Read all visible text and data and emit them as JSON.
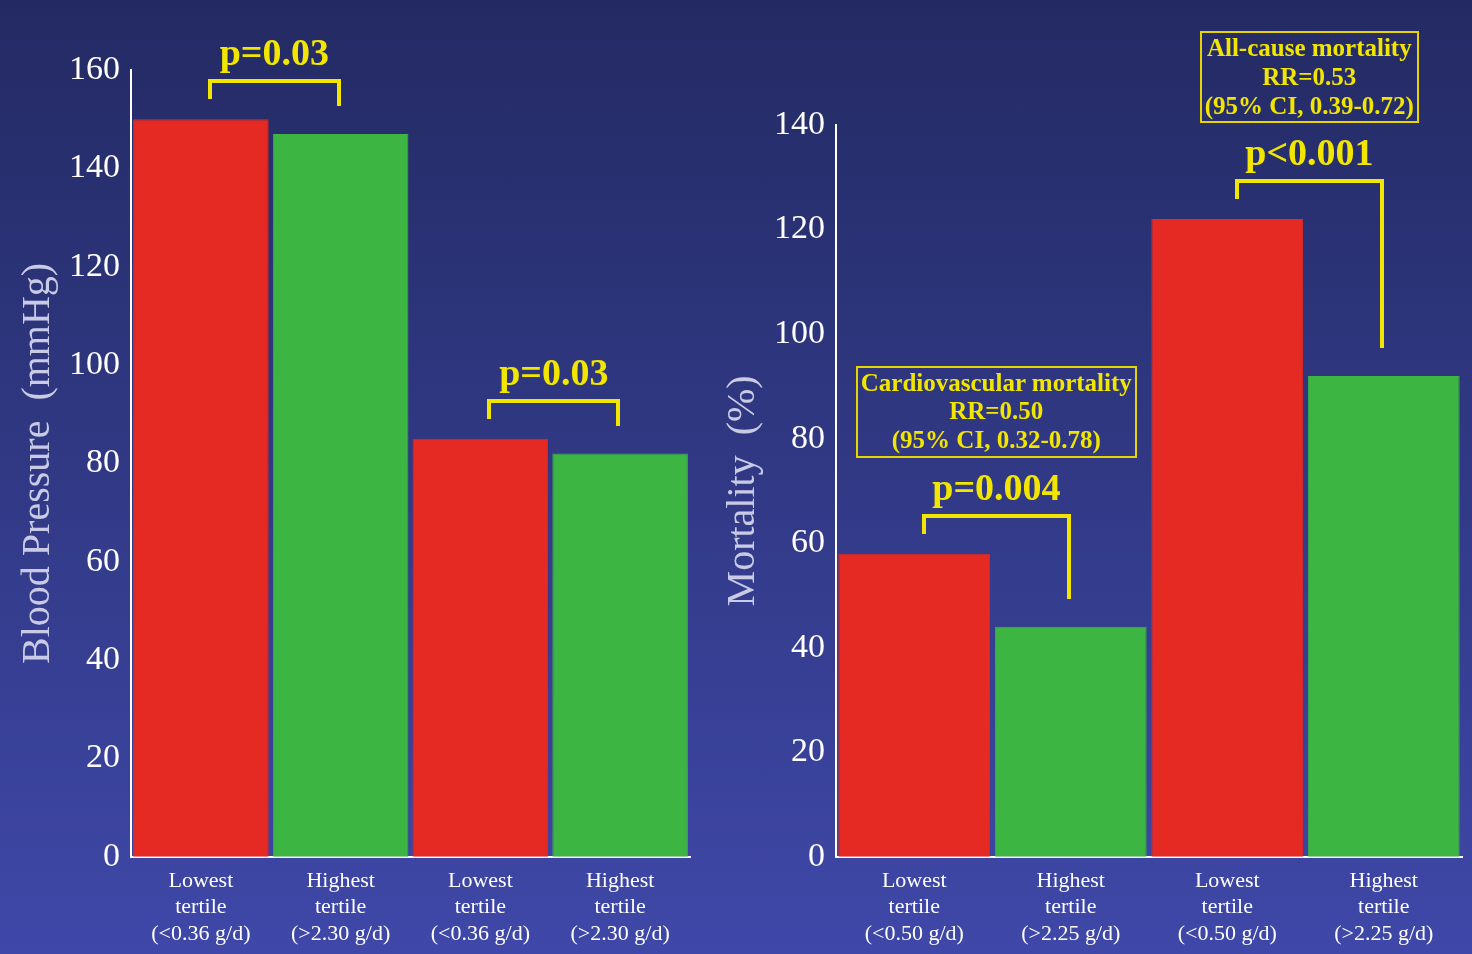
{
  "chart_data": [
    {
      "type": "bar",
      "ylabel": "Blood Pressure  (mmHg)",
      "categories": [
        "Lowest\ntertile\n(<0.36 g/d)",
        "Highest\ntertile\n(>2.30 g/d)",
        "Lowest\ntertile\n(<0.36 g/d)",
        "Highest\ntertile\n(>2.30 g/d)"
      ],
      "values": [
        150,
        147,
        85,
        82
      ],
      "colors": [
        "#e42a22",
        "#3db542",
        "#e42a22",
        "#3db542"
      ],
      "ylim": [
        0,
        160
      ],
      "yticks": [
        0,
        20,
        40,
        60,
        80,
        100,
        120,
        140,
        160
      ],
      "grid": false,
      "legend": false,
      "annotations": [
        "p=0.03",
        "p=0.03"
      ]
    },
    {
      "type": "bar",
      "ylabel": "Mortality  (%)",
      "categories": [
        "Lowest\ntertile\n(<0.50 g/d)",
        "Highest\ntertile\n(>2.25 g/d)",
        "Lowest\ntertile\n(<0.50 g/d)",
        "Highest\ntertile\n(>2.25 g/d)"
      ],
      "values": [
        58,
        44,
        122,
        92
      ],
      "colors": [
        "#e42a22",
        "#3db542",
        "#e42a22",
        "#3db542"
      ],
      "ylim": [
        0,
        140
      ],
      "yticks": [
        0,
        20,
        40,
        60,
        80,
        100,
        120,
        140
      ],
      "grid": false,
      "legend": false,
      "annotations": [
        "Cardiovascular mortality\nRR=0.50\n(95% CI, 0.32-0.78)",
        "p=0.004",
        "All-cause mortality\nRR=0.53\n(95% CI, 0.39-0.72)",
        "p<0.001"
      ]
    }
  ]
}
